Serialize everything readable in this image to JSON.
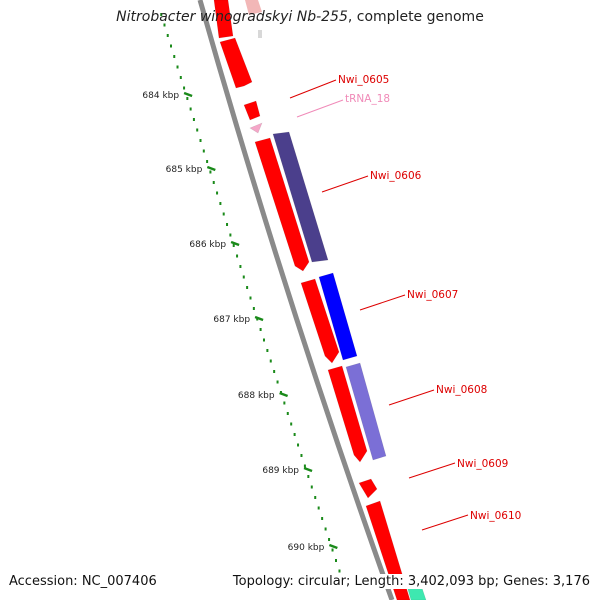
{
  "header": {
    "organism": "Nitrobacter winogradskyi Nb-255",
    "suffix": ", complete genome"
  },
  "footer": {
    "accession": "Accession: NC_007406",
    "summary": "Topology: circular; Length: 3,402,093 bp; Genes: 3,176"
  },
  "ruler": {
    "ticks": [
      "684 kbp",
      "685 kbp",
      "686 kbp",
      "687 kbp",
      "688 kbp",
      "689 kbp",
      "690 kbp"
    ]
  },
  "colors": {
    "backbone": "#8a8a8a",
    "forward_gene": "#ff0000",
    "trna": "#f5a6c8",
    "navy_gene": "#4b3f8c",
    "blue_gene": "#0000ff",
    "lavender_gene": "#7b6fd6",
    "teal_gene": "#3ee8b0",
    "ruler": "#1a8a1a",
    "label": "#dd0000",
    "trna_label": "#f08ab8"
  },
  "genes": [
    {
      "label": "Nwi_0605",
      "kind": "forward"
    },
    {
      "label": "tRNA_18",
      "kind": "trna"
    },
    {
      "label": "Nwi_0606",
      "kind": "navy"
    },
    {
      "label": "Nwi_0607",
      "kind": "blue"
    },
    {
      "label": "Nwi_0608",
      "kind": "lavender"
    },
    {
      "label": "Nwi_0609",
      "kind": "forward"
    },
    {
      "label": "Nwi_0610",
      "kind": "forward"
    }
  ]
}
